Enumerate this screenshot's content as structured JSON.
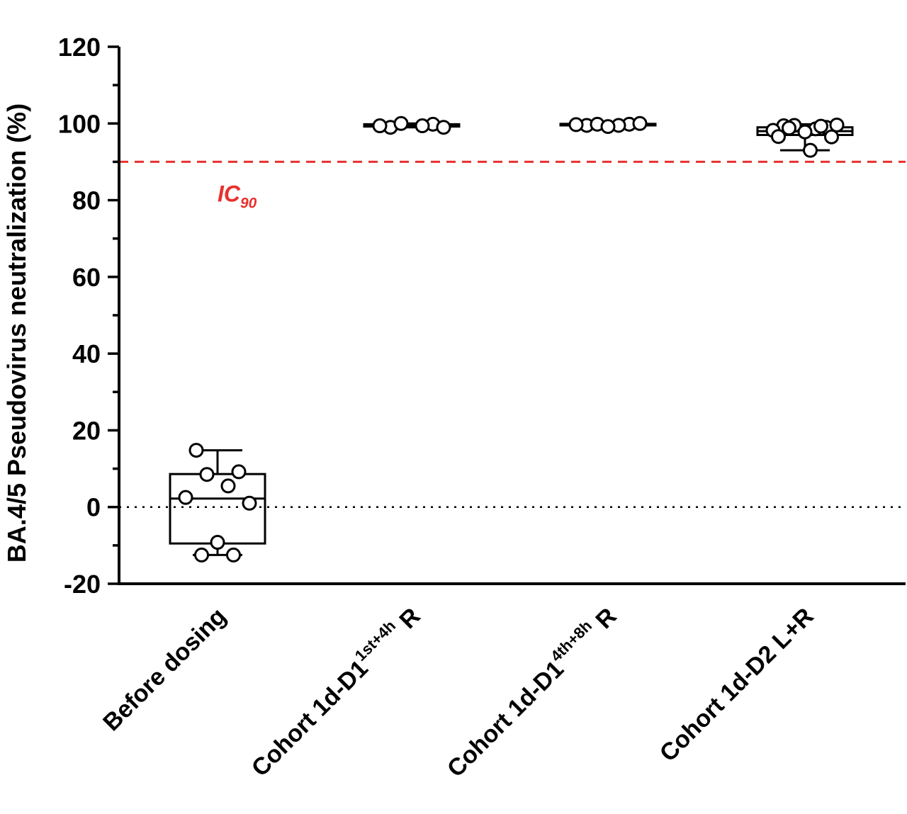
{
  "chart_data": {
    "type": "box",
    "title": "",
    "ylabel": "BA.4/5  Pseudovirus neutralization (%)",
    "xlabel": "",
    "ylim": [
      -20,
      120
    ],
    "yticks": [
      -20,
      0,
      20,
      40,
      60,
      80,
      100,
      120
    ],
    "y_minor_tick_step": 10,
    "grid": false,
    "categories": [
      {
        "main": "Before dosing",
        "sup": "",
        "suffix": ""
      },
      {
        "main": "Cohort 1d-D1",
        "sup": "1st+4h",
        "suffix": " R"
      },
      {
        "main": "Cohort 1d-D1",
        "sup": "4th+8h",
        "suffix": " R"
      },
      {
        "main": "Cohort 1d-D2 L+R",
        "sup": "",
        "suffix": ""
      }
    ],
    "boxes": [
      {
        "min": -12.5,
        "q1": -9.5,
        "median": 2.2,
        "q3": 8.6,
        "max": 14.8
      },
      {
        "min": 99.0,
        "q1": 99.2,
        "median": 99.6,
        "q3": 99.8,
        "max": 100.0
      },
      {
        "min": 99.2,
        "q1": 99.5,
        "median": 99.7,
        "q3": 99.9,
        "max": 100.0
      },
      {
        "min": 93.0,
        "q1": 97.0,
        "median": 98.0,
        "q3": 99.0,
        "max": 99.8
      }
    ],
    "points": [
      [
        14.8,
        9.2,
        8.5,
        5.5,
        2.5,
        1.0,
        -9.2,
        -12.5,
        -12.5
      ],
      [
        99.0,
        99.8,
        100.0,
        99.4,
        99.4,
        99.0
      ],
      [
        99.5,
        99.8,
        99.8,
        99.5,
        99.7,
        100.0,
        99.2
      ],
      [
        99.4,
        99.0,
        99.5,
        98.6,
        98.2,
        99.6,
        97.8,
        98.8,
        99.3,
        96.6,
        96.5,
        93.0
      ]
    ],
    "reference_lines": [
      {
        "y": 90,
        "label": "IC",
        "label_sub": "90",
        "style": "dashed",
        "color": "#e8312f"
      },
      {
        "y": 0,
        "label": "",
        "style": "dotted",
        "color": "#000000"
      }
    ],
    "colors": {
      "axis": "#000000",
      "reference": "#e8312f",
      "marker": "#000000"
    }
  }
}
